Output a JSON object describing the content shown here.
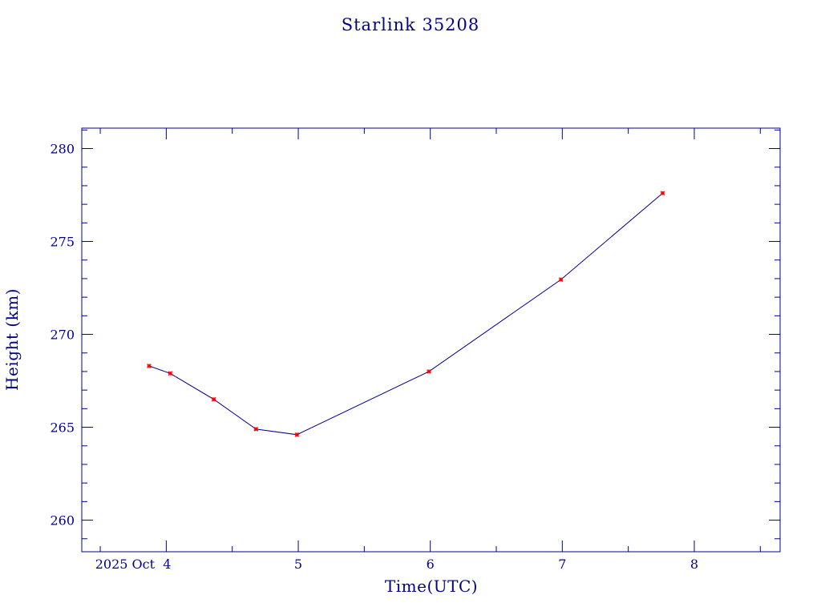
{
  "chart_data": {
    "type": "line",
    "title": "Starlink 35208",
    "xlabel": "Time(UTC)",
    "ylabel": "Height (km)",
    "x_tick_labels": [
      "2025 Oct  4",
      "5",
      "6",
      "7",
      "8"
    ],
    "x_ticks": [
      4,
      5,
      6,
      7,
      8
    ],
    "xlim": [
      3.36,
      8.65
    ],
    "y_ticks": [
      260,
      265,
      270,
      275,
      280
    ],
    "ylim": [
      258.3,
      281.1
    ],
    "grid": false,
    "legend": "none",
    "series": [
      {
        "x": [
          3.87,
          4.03,
          4.36,
          4.68,
          4.99,
          5.99,
          6.99,
          7.76
        ],
        "values": [
          268.3,
          267.9,
          266.5,
          264.9,
          264.6,
          268.0,
          272.95,
          277.6
        ]
      }
    ]
  },
  "colors": {
    "axis": "#00008b",
    "line": "#00008b",
    "marker": "#ff0000"
  }
}
